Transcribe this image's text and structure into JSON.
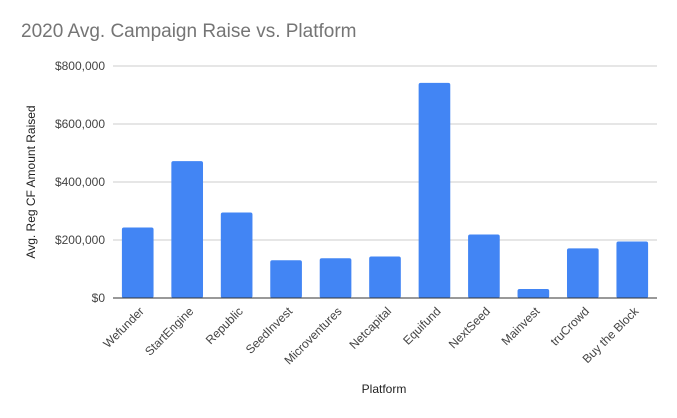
{
  "chart_data": {
    "type": "bar",
    "title": "2020 Avg. Campaign Raise vs. Platform",
    "xlabel": "Platform",
    "ylabel": "Avg. Reg CF Amount Raised",
    "categories": [
      "Wefunder",
      "StartEngine",
      "Republic",
      "SeedInvest",
      "Microventures",
      "Netcapital",
      "Equifund",
      "NextSeed",
      "Mainvest",
      "truCrowd",
      "Buy the Block"
    ],
    "values": [
      243000,
      472000,
      295000,
      130000,
      137000,
      143000,
      742000,
      219000,
      31000,
      171000,
      195000
    ],
    "ylim": [
      0,
      800000
    ],
    "yticks": [
      0,
      200000,
      400000,
      600000,
      800000
    ],
    "ytick_labels": [
      "$0",
      "$200,000",
      "$400,000",
      "$600,000",
      "$800,000"
    ],
    "grid": true,
    "legend": "none",
    "bar_color": "#4285f4",
    "gridline_color": "#cccccc",
    "axis_color": "#333333"
  }
}
